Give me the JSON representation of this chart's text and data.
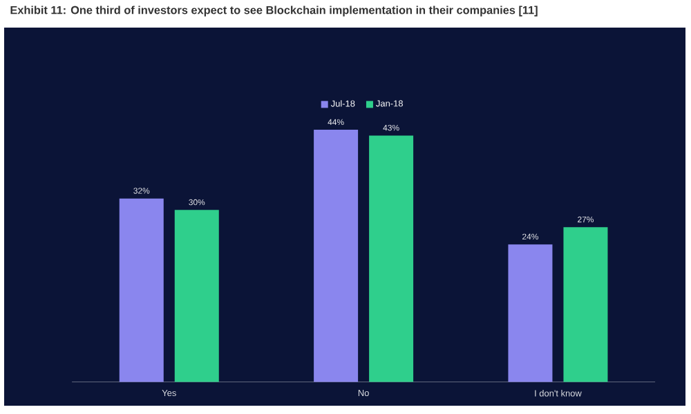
{
  "chart_data": {
    "type": "bar",
    "title": "Exhibit 11: One third of investors expect to see Blockchain implementation in their companies [11]",
    "categories": [
      "Yes",
      "No",
      "I don't know"
    ],
    "series": [
      {
        "name": "Jul-18",
        "color": "#8a86ee",
        "values": [
          32,
          44,
          24
        ],
        "value_labels": [
          "32%",
          "44%",
          "24%"
        ]
      },
      {
        "name": "Jan-18",
        "color": "#2fcf8c",
        "values": [
          30,
          43,
          27
        ],
        "value_labels": [
          "30%",
          "43%",
          "27%"
        ]
      }
    ],
    "legend": "top",
    "grid": false
  }
}
